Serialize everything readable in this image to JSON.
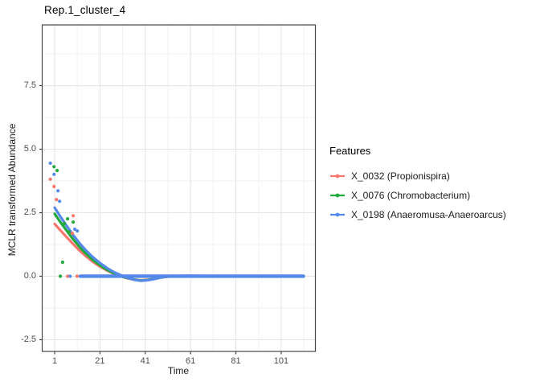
{
  "title": "Rep.1_cluster_4",
  "axes": {
    "x": {
      "label": "Time",
      "tick_labels": [
        "1",
        "21",
        "41",
        "61",
        "81",
        "101"
      ]
    },
    "y": {
      "label": "MCLR transformed Abundance",
      "tick_labels": [
        "-2.5",
        "0.0",
        "2.5",
        "5.0",
        "7.5"
      ]
    }
  },
  "legend": {
    "title": "Features",
    "entries": [
      {
        "label": "X_0032 (Propionispira)",
        "color": "#F8766D"
      },
      {
        "label": "X_0076 (Chromobacterium)",
        "color": "#22A93C"
      },
      {
        "label": "X_0198 (Anaeromusa-Anaeroarcus)",
        "color": "#5588EB"
      }
    ]
  },
  "chart_data": {
    "type": "scatter",
    "title": "Rep.1_cluster_4",
    "xlabel": "Time",
    "ylabel": "MCLR transformed Abundance",
    "xlim": [
      -4.5,
      116.1
    ],
    "ylim": [
      -2.96,
      9.89
    ],
    "x_ticks": [
      1,
      21,
      41,
      61,
      81,
      101
    ],
    "x_minor_ticks": [
      11,
      31,
      51,
      71,
      91,
      111
    ],
    "y_ticks": [
      -2.5,
      0.0,
      2.5,
      5.0,
      7.5
    ],
    "y_minor_ticks": [
      -1.25,
      1.25,
      3.75,
      6.25,
      8.75
    ],
    "grid": "major+minor",
    "legend_position": "right",
    "legend_title": "Features",
    "series": [
      {
        "name": "X_0032 (Propionispira)",
        "color": "#F8766D",
        "points": [
          [
            -0.9,
            3.82
          ],
          [
            0.7,
            3.53
          ],
          [
            1.8,
            3.02
          ],
          [
            9.2,
            2.38
          ],
          [
            8.8,
            1.69
          ],
          [
            6.7,
            0.0
          ],
          [
            10.9,
            0.0
          ]
        ],
        "smooth": [
          [
            1,
            2.06
          ],
          [
            3,
            1.86
          ],
          [
            6,
            1.57
          ],
          [
            9,
            1.28
          ],
          [
            12,
            1.01
          ],
          [
            15,
            0.77
          ],
          [
            18,
            0.56
          ],
          [
            21,
            0.38
          ],
          [
            24,
            0.23
          ],
          [
            27,
            0.1
          ],
          [
            30,
            0.0
          ],
          [
            33,
            -0.08
          ],
          [
            36,
            -0.13
          ],
          [
            39,
            -0.16
          ],
          [
            42,
            -0.14
          ],
          [
            45,
            -0.1
          ],
          [
            48,
            -0.05
          ],
          [
            51,
            -0.01
          ],
          [
            55,
            0.0
          ],
          [
            60,
            0.0
          ],
          [
            70,
            0.0
          ],
          [
            85,
            0.0
          ],
          [
            110.8,
            0.0
          ]
        ]
      },
      {
        "name": "X_0076 (Chromobacterium)",
        "color": "#22A93C",
        "points": [
          [
            0.7,
            4.31
          ],
          [
            2.1,
            4.16
          ],
          [
            6.7,
            2.26
          ],
          [
            9.2,
            2.13
          ],
          [
            5.3,
            2.07
          ],
          [
            7.4,
            1.74
          ],
          [
            4.5,
            0.55
          ],
          [
            3.5,
            0.0
          ]
        ],
        "smooth": [
          [
            1,
            2.46
          ],
          [
            3,
            2.2
          ],
          [
            6,
            1.83
          ],
          [
            9,
            1.47
          ],
          [
            12,
            1.15
          ],
          [
            15,
            0.87
          ],
          [
            18,
            0.63
          ],
          [
            21,
            0.43
          ],
          [
            24,
            0.26
          ],
          [
            27,
            0.12
          ],
          [
            30,
            0.01
          ],
          [
            33,
            -0.07
          ],
          [
            36,
            -0.13
          ],
          [
            39,
            -0.17
          ],
          [
            42,
            -0.15
          ],
          [
            45,
            -0.1
          ],
          [
            48,
            -0.05
          ],
          [
            51,
            -0.01
          ],
          [
            55,
            0.0
          ],
          [
            60,
            0.0
          ],
          [
            70,
            0.0
          ],
          [
            85,
            0.0
          ],
          [
            110.8,
            0.0
          ]
        ]
      },
      {
        "name": "X_0198 (Anaeromusa-Anaeroarcus)",
        "color": "#5588EB",
        "points": [
          [
            -0.9,
            4.45
          ],
          [
            0.7,
            4.01
          ],
          [
            2.5,
            3.36
          ],
          [
            3.2,
            2.95
          ],
          [
            9.9,
            1.85
          ],
          [
            11.0,
            1.78
          ],
          [
            7.8,
            0.0
          ]
        ],
        "smooth": [
          [
            1,
            2.7
          ],
          [
            3,
            2.42
          ],
          [
            6,
            2.02
          ],
          [
            9,
            1.64
          ],
          [
            12,
            1.3
          ],
          [
            15,
            1.0
          ],
          [
            18,
            0.74
          ],
          [
            21,
            0.52
          ],
          [
            24,
            0.33
          ],
          [
            27,
            0.17
          ],
          [
            30,
            0.05
          ],
          [
            33,
            -0.06
          ],
          [
            36,
            -0.14
          ],
          [
            39,
            -0.18
          ],
          [
            42,
            -0.16
          ],
          [
            45,
            -0.11
          ],
          [
            48,
            -0.05
          ],
          [
            51,
            -0.01
          ],
          [
            55,
            0.01
          ],
          [
            60,
            0.02
          ],
          [
            70,
            0.01
          ],
          [
            85,
            0.01
          ],
          [
            110.8,
            0.01
          ]
        ]
      }
    ],
    "zero_run": {
      "series": "X_0198 (Anaeromusa-Anaeroarcus)",
      "color": "#5588EB",
      "x_from": 12.3,
      "x_to": 110.8,
      "y": 0
    }
  }
}
